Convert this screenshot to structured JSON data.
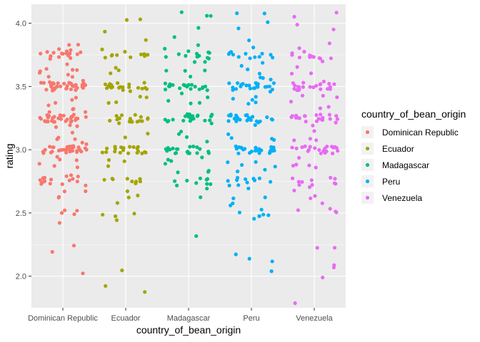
{
  "chart_data": {
    "type": "scatter",
    "subtype": "jitter",
    "xlabel": "country_of_bean_origin",
    "ylabel": "rating",
    "categories": [
      "Dominican Republic",
      "Ecuador",
      "Madagascar",
      "Peru",
      "Venezuela"
    ],
    "ylim": [
      1.75,
      4.15
    ],
    "yticks": [
      2.0,
      2.5,
      3.0,
      3.5,
      4.0
    ],
    "ytick_labels": [
      "2.0",
      "2.5",
      "3.0",
      "3.5",
      "4.0"
    ],
    "grid": true,
    "legend": {
      "title": "country_of_bean_origin",
      "position": "right",
      "labels": [
        "Dominican Republic",
        "Ecuador",
        "Madagascar",
        "Peru",
        "Venezuela"
      ]
    },
    "colors": [
      "#F8766D",
      "#A3A500",
      "#00BF7D",
      "#00B0F6",
      "#E76BF3"
    ],
    "series": [
      {
        "name": "Dominican Republic",
        "values": [
          3.0,
          3.5,
          3.25,
          3.75,
          2.75,
          2.5,
          3.0,
          3.5,
          3.25,
          3.75,
          2.75,
          2.25,
          2.2,
          2.0,
          3.8,
          3.85,
          3.65,
          3.5,
          3.3,
          3.1,
          2.9,
          2.8,
          2.65,
          3.6,
          3.7,
          3.4,
          3.15,
          2.95,
          2.6,
          2.45,
          3.0,
          3.25,
          3.5,
          3.75,
          2.75,
          2.5,
          3.0,
          3.25,
          3.5,
          3.8,
          2.7,
          3.35,
          3.05,
          3.6,
          3.2,
          2.85,
          3.45,
          3.0,
          3.25,
          3.5,
          3.75,
          2.75,
          3.0,
          3.25,
          3.5,
          3.7,
          3.1,
          2.9,
          3.3,
          3.6,
          3.0,
          3.25,
          3.5,
          3.75,
          2.8,
          3.0,
          3.25,
          3.5,
          3.0,
          3.25,
          3.5,
          3.75,
          2.75,
          3.0,
          3.25,
          3.5,
          3.0,
          3.2,
          3.4,
          3.6,
          3.0,
          3.25,
          3.5,
          3.0,
          3.3,
          3.5,
          2.95,
          3.15,
          3.55,
          3.75,
          2.75,
          3.0,
          3.25,
          3.5,
          3.0,
          3.25,
          3.5,
          3.0,
          3.25,
          3.5,
          2.8,
          3.0,
          3.25,
          3.5,
          3.75,
          3.0,
          3.25,
          3.5,
          2.7,
          3.0,
          3.25,
          3.5,
          3.0,
          3.25,
          3.5,
          3.75,
          3.0,
          3.25,
          3.5,
          2.75,
          3.0,
          3.25,
          3.5,
          3.6,
          3.0,
          3.2,
          2.85,
          3.4,
          3.65,
          3.0,
          3.25,
          3.5,
          3.75,
          2.5,
          2.75,
          3.0,
          3.25,
          3.5,
          3.75,
          3.0,
          3.25,
          2.75,
          3.5,
          3.0,
          3.25,
          3.5,
          2.5,
          2.75,
          3.0,
          3.25,
          3.5,
          3.75,
          3.0,
          3.25,
          3.5,
          2.75,
          3.0,
          3.25,
          3.5,
          3.75,
          2.7,
          3.0,
          3.25,
          3.5,
          3.0,
          3.25,
          3.5,
          3.75,
          2.8,
          3.05,
          3.3,
          3.55,
          3.8,
          2.9,
          3.1,
          3.35,
          3.6,
          2.6,
          3.0,
          3.25,
          3.5,
          3.75,
          3.0
        ]
      },
      {
        "name": "Ecuador",
        "values": [
          3.0,
          3.5,
          3.25,
          3.75,
          2.75,
          2.5,
          3.0,
          3.5,
          3.25,
          3.75,
          2.75,
          2.5,
          2.45,
          2.05,
          1.95,
          1.9,
          4.0,
          4.05,
          3.95,
          3.85,
          3.6,
          3.4,
          3.2,
          3.1,
          2.9,
          2.7,
          2.6,
          3.0,
          3.25,
          3.5,
          3.75,
          2.75,
          3.0,
          3.25,
          3.5,
          3.75,
          2.95,
          3.15,
          3.45,
          3.65,
          2.85,
          3.05,
          3.35,
          3.55,
          2.65,
          3.0,
          3.25,
          3.5,
          3.75,
          2.75,
          3.0,
          3.25,
          3.5,
          3.0,
          3.25,
          3.5,
          3.75,
          2.75,
          3.0,
          3.25,
          3.5,
          3.8,
          3.0,
          3.25,
          3.5,
          2.8,
          3.0,
          3.25,
          3.5,
          3.75,
          2.55,
          3.0,
          3.25,
          3.5,
          3.0,
          3.25,
          3.5,
          3.75,
          2.75,
          3.0,
          3.25,
          3.5,
          3.6,
          3.4,
          3.2,
          2.9,
          3.0,
          3.25,
          3.5,
          3.75,
          2.75,
          2.45,
          3.0,
          3.25,
          3.5,
          3.0,
          3.25,
          3.5,
          3.75,
          2.75,
          3.0,
          3.25,
          3.5,
          3.0,
          3.4,
          3.55
        ]
      },
      {
        "name": "Madagascar",
        "values": [
          3.0,
          3.5,
          3.25,
          3.75,
          2.75,
          3.0,
          3.5,
          3.25,
          3.75,
          2.75,
          2.3,
          4.05,
          4.1,
          4.05,
          3.95,
          3.9,
          3.8,
          3.7,
          3.6,
          3.4,
          3.3,
          3.2,
          3.1,
          2.9,
          2.8,
          2.7,
          2.65,
          3.0,
          3.25,
          3.5,
          3.75,
          2.75,
          3.0,
          3.25,
          3.5,
          3.75,
          2.95,
          3.15,
          3.45,
          3.65,
          2.85,
          3.05,
          3.35,
          3.55,
          2.7,
          3.0,
          3.25,
          3.5,
          3.75,
          2.75,
          3.0,
          3.25,
          3.5,
          3.0,
          3.25,
          3.5,
          3.75,
          2.75,
          3.0,
          3.25,
          3.5,
          3.8,
          3.0,
          3.25,
          3.5,
          2.8,
          3.0,
          3.25,
          3.5,
          3.75,
          3.0,
          3.25,
          3.5,
          3.0,
          3.25,
          3.5,
          3.75,
          2.75,
          3.0,
          3.25,
          3.5,
          3.6,
          3.4,
          3.2,
          2.9,
          3.0,
          3.25,
          3.5,
          3.75,
          2.75,
          3.0,
          3.25,
          3.5,
          3.0,
          3.25,
          3.5,
          3.75,
          2.75,
          3.0,
          3.25,
          3.5,
          3.0,
          3.4,
          3.55,
          3.0,
          3.25,
          3.5,
          3.75,
          3.0,
          3.25,
          3.5,
          3.0,
          2.95,
          3.1,
          3.3,
          3.5,
          3.7
        ]
      },
      {
        "name": "Peru",
        "values": [
          3.0,
          3.5,
          3.25,
          3.75,
          2.75,
          2.5,
          3.0,
          3.5,
          3.25,
          3.75,
          2.75,
          2.5,
          2.2,
          2.15,
          2.1,
          2.05,
          4.1,
          4.05,
          4.0,
          3.95,
          3.85,
          3.6,
          3.4,
          3.2,
          3.1,
          2.9,
          2.7,
          2.6,
          2.45,
          3.0,
          3.25,
          3.5,
          3.75,
          2.75,
          2.5,
          3.0,
          3.25,
          3.5,
          3.75,
          2.95,
          3.15,
          3.45,
          3.65,
          2.85,
          3.05,
          3.35,
          3.55,
          2.65,
          3.0,
          3.25,
          3.5,
          3.75,
          2.75,
          2.5,
          3.0,
          3.25,
          3.5,
          3.0,
          3.25,
          3.5,
          3.75,
          2.75,
          3.0,
          3.25,
          3.5,
          3.8,
          3.0,
          3.25,
          3.5,
          2.8,
          3.0,
          3.25,
          3.5,
          3.75,
          2.55,
          3.0,
          3.25,
          3.5,
          3.0,
          3.25,
          3.5,
          3.75,
          2.75,
          3.0,
          3.25,
          3.5,
          3.6,
          3.4,
          3.2,
          2.9,
          3.0,
          3.25,
          3.5,
          3.75,
          2.75,
          2.45,
          3.0,
          3.25,
          3.5,
          3.0,
          3.25,
          3.5,
          3.75,
          2.75,
          3.0,
          3.25,
          3.5,
          3.0,
          3.4,
          3.55,
          3.0,
          3.25,
          3.5,
          3.75,
          2.6,
          3.0,
          3.25,
          3.5,
          2.7,
          2.9,
          3.1,
          3.3,
          3.5,
          3.7,
          2.5,
          2.75,
          3.0,
          3.25,
          3.5,
          3.75,
          3.0,
          3.25,
          3.5,
          2.75,
          3.0,
          3.25,
          3.5,
          2.85,
          3.05,
          3.35,
          3.65,
          3.0
        ]
      },
      {
        "name": "Venezuela",
        "values": [
          3.0,
          3.5,
          3.25,
          3.75,
          2.75,
          2.5,
          3.0,
          3.5,
          3.25,
          3.75,
          2.75,
          2.5,
          2.25,
          2.2,
          2.1,
          2.05,
          2.0,
          1.8,
          4.1,
          4.05,
          4.0,
          3.95,
          3.85,
          3.6,
          3.4,
          3.2,
          3.1,
          2.9,
          2.7,
          2.6,
          3.0,
          3.25,
          3.5,
          3.75,
          2.75,
          2.5,
          3.0,
          3.25,
          3.5,
          3.75,
          2.95,
          3.15,
          3.45,
          3.65,
          2.85,
          3.05,
          3.35,
          3.55,
          2.65,
          3.0,
          3.25,
          3.5,
          3.75,
          2.75,
          3.0,
          3.25,
          3.5,
          3.0,
          3.25,
          3.5,
          3.75,
          2.75,
          3.0,
          3.25,
          3.5,
          3.8,
          3.0,
          3.25,
          3.5,
          2.8,
          3.0,
          3.25,
          3.5,
          3.75,
          2.55,
          3.0,
          3.25,
          3.5,
          3.0,
          3.25,
          3.5,
          3.75,
          2.75,
          3.0,
          3.25,
          3.5,
          3.6,
          3.4,
          3.2,
          2.9,
          3.0,
          3.25,
          3.5,
          3.75,
          2.75,
          3.0,
          3.25,
          3.5,
          3.0,
          3.25,
          3.5,
          3.75,
          2.75,
          3.0,
          3.25,
          3.5,
          3.0,
          3.4,
          3.55,
          3.0,
          3.25,
          3.5,
          3.75,
          2.6,
          3.0,
          3.25,
          3.5,
          2.7,
          2.9,
          3.1,
          3.3,
          3.5,
          3.7,
          3.0,
          3.25,
          3.5,
          2.75,
          3.0
        ]
      }
    ]
  }
}
